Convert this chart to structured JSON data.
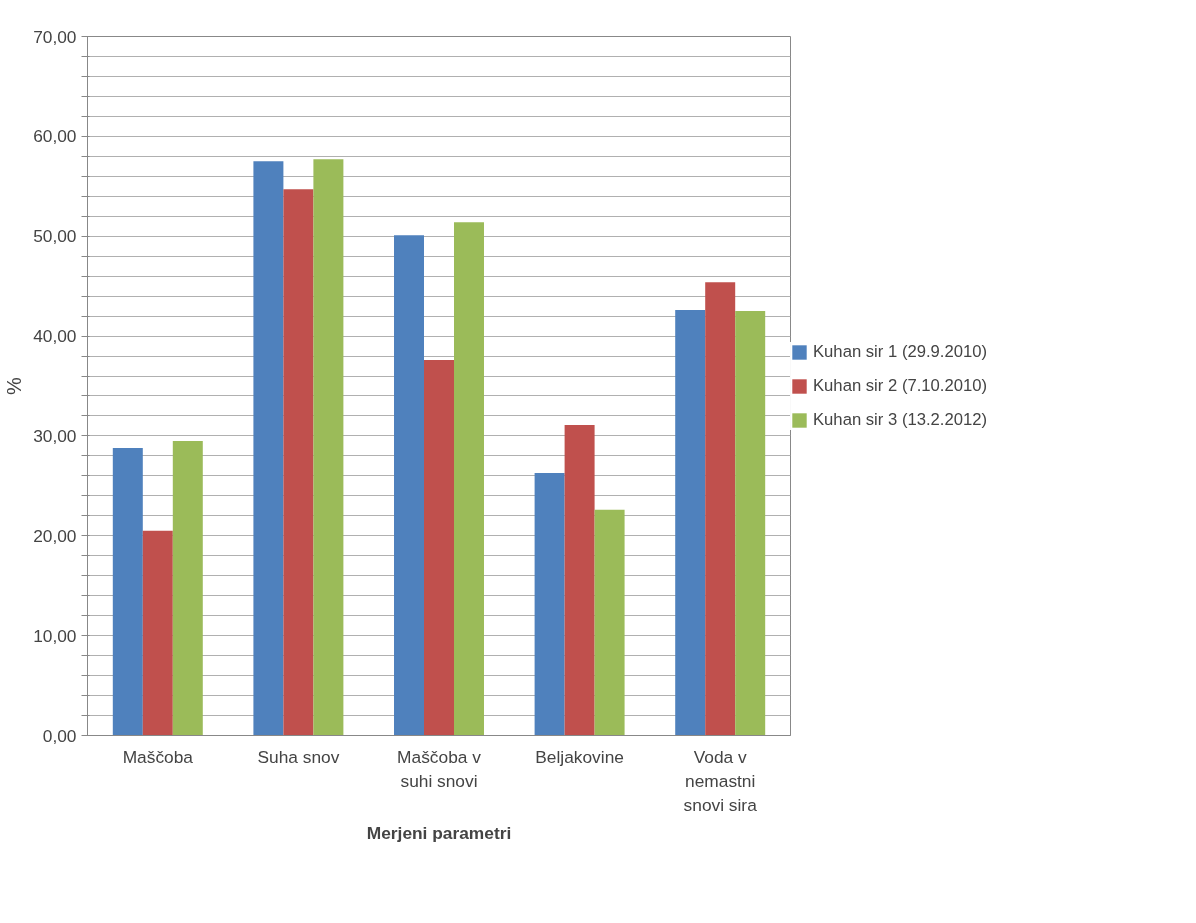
{
  "chart_data": {
    "type": "bar",
    "xlabel": "Merjeni parametri",
    "ylabel": "%",
    "categories": [
      "Maščoba",
      "Suha snov",
      "Maščoba v suhi snovi",
      "Beljakovine",
      "Voda v nemastni snovi sira"
    ],
    "series": [
      {
        "name": "Kuhan sir 1 (29.9.2010)",
        "color": "#4f81bd",
        "values": [
          28.8,
          57.5,
          50.1,
          26.3,
          42.6
        ]
      },
      {
        "name": "Kuhan sir 2 (7.10.2010)",
        "color": "#c0504d",
        "values": [
          20.5,
          54.7,
          37.6,
          31.1,
          45.4
        ]
      },
      {
        "name": "Kuhan sir 3 (13.2.2012)",
        "color": "#9bbb59",
        "values": [
          29.5,
          57.7,
          51.4,
          22.6,
          42.5
        ]
      }
    ],
    "ylim": [
      0,
      70
    ],
    "yticks": [
      {
        "value": 0,
        "label": "0,00"
      },
      {
        "value": 2,
        "label": null
      },
      {
        "value": 4,
        "label": null
      },
      {
        "value": 6,
        "label": null
      },
      {
        "value": 8,
        "label": null
      },
      {
        "value": 10,
        "label": "10,00"
      },
      {
        "value": 12,
        "label": null
      },
      {
        "value": 14,
        "label": null
      },
      {
        "value": 16,
        "label": null
      },
      {
        "value": 18,
        "label": null
      },
      {
        "value": 20,
        "label": "20,00"
      },
      {
        "value": 22,
        "label": null
      },
      {
        "value": 24,
        "label": null
      },
      {
        "value": 26,
        "label": null
      },
      {
        "value": 28,
        "label": null
      },
      {
        "value": 30,
        "label": "30,00"
      },
      {
        "value": 32,
        "label": null
      },
      {
        "value": 34,
        "label": null
      },
      {
        "value": 36,
        "label": null
      },
      {
        "value": 38,
        "label": null
      },
      {
        "value": 40,
        "label": "40,00"
      },
      {
        "value": 42,
        "label": null
      },
      {
        "value": 44,
        "label": null
      },
      {
        "value": 46,
        "label": null
      },
      {
        "value": 48,
        "label": null
      },
      {
        "value": 50,
        "label": "50,00"
      },
      {
        "value": 52,
        "label": null
      },
      {
        "value": 54,
        "label": null
      },
      {
        "value": 56,
        "label": null
      },
      {
        "value": 58,
        "label": null
      },
      {
        "value": 60,
        "label": "60,00"
      },
      {
        "value": 62,
        "label": null
      },
      {
        "value": 64,
        "label": null
      },
      {
        "value": 66,
        "label": null
      },
      {
        "value": 68,
        "label": null
      },
      {
        "value": 70,
        "label": "70,00"
      }
    ],
    "grid": "y",
    "legend": "right"
  }
}
